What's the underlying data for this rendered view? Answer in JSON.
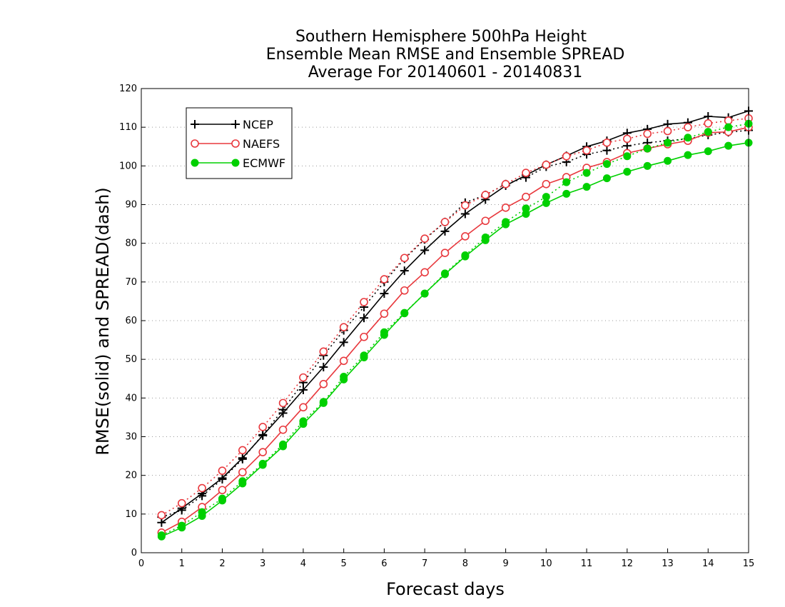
{
  "chart_data": {
    "type": "line",
    "title_lines": [
      "Southern Hemisphere 500hPa Height",
      "Ensemble Mean RMSE and Ensemble SPREAD",
      "Average For 20140601 - 20140831"
    ],
    "xlabel": "Forecast days",
    "ylabel": "RMSE(solid) and SPREAD(dash)",
    "xlim": [
      0,
      15
    ],
    "ylim": [
      0,
      120
    ],
    "xticks": [
      0,
      1,
      2,
      3,
      4,
      5,
      6,
      7,
      8,
      9,
      10,
      11,
      12,
      13,
      14,
      15
    ],
    "yticks": [
      0,
      10,
      20,
      30,
      40,
      50,
      60,
      70,
      80,
      90,
      100,
      110,
      120
    ],
    "grid": "horizontal-dotted",
    "legend_position": "top-left",
    "x": [
      0.5,
      1,
      1.5,
      2,
      2.5,
      3,
      3.5,
      4,
      4.5,
      5,
      5.5,
      6,
      6.5,
      7,
      7.5,
      8,
      8.5,
      9,
      9.5,
      10,
      10.5,
      11,
      11.5,
      12,
      12.5,
      13,
      13.5,
      14,
      14.5,
      15
    ],
    "series": [
      {
        "name": "NCEP",
        "color": "#000000",
        "marker": "plus",
        "rmse": [
          7.8,
          11.5,
          15.3,
          19.3,
          24.5,
          30.3,
          36.1,
          42.1,
          48.0,
          54.4,
          60.7,
          67.0,
          72.9,
          78.2,
          83.1,
          87.6,
          91.3,
          94.9,
          97.6,
          100.3,
          102.6,
          105.0,
          106.5,
          108.5,
          109.5,
          110.8,
          111.2,
          112.8,
          112.5,
          114.2
        ],
        "spread": [
          9.2,
          11.0,
          14.7,
          19.0,
          24.2,
          30.5,
          37.0,
          44.0,
          51.0,
          57.5,
          63.5,
          70.0,
          76.0,
          81.0,
          85.5,
          90.5,
          92.5,
          95.3,
          97.0,
          99.8,
          101.0,
          103.0,
          104.0,
          105.2,
          106.0,
          106.5,
          107.0,
          108.0,
          108.7,
          109.2
        ]
      },
      {
        "name": "NAEFS",
        "color": "#e8383d",
        "marker": "open-circle",
        "rmse": [
          5.2,
          8.0,
          11.8,
          16.2,
          20.8,
          26.0,
          31.8,
          37.6,
          43.6,
          49.6,
          55.8,
          61.8,
          67.8,
          72.5,
          77.5,
          81.8,
          85.8,
          89.2,
          92.0,
          95.3,
          97.1,
          99.5,
          101.0,
          103.3,
          104.5,
          105.6,
          106.5,
          108.6,
          108.8,
          110.0
        ],
        "spread": [
          9.7,
          12.8,
          16.7,
          21.2,
          26.5,
          32.5,
          38.7,
          45.3,
          52.0,
          58.3,
          64.8,
          70.7,
          76.2,
          81.2,
          85.5,
          89.8,
          92.5,
          95.3,
          98.2,
          100.3,
          102.5,
          104.0,
          106.0,
          107.0,
          108.3,
          109.0,
          110.0,
          111.0,
          111.7,
          112.3
        ]
      },
      {
        "name": "ECMWF",
        "color": "#00d000",
        "marker": "filled-circle",
        "rmse": [
          4.2,
          6.5,
          9.5,
          13.5,
          17.9,
          22.7,
          27.5,
          33.3,
          38.7,
          44.8,
          50.5,
          56.3,
          61.9,
          67.0,
          72.0,
          76.6,
          80.8,
          84.9,
          87.6,
          90.4,
          92.8,
          94.6,
          96.8,
          98.5,
          100.0,
          101.3,
          102.8,
          103.8,
          105.2,
          106.0
        ],
        "spread": [
          4.5,
          7.0,
          10.5,
          14.0,
          18.5,
          23.0,
          28.0,
          34.0,
          39.0,
          45.5,
          51.0,
          57.0,
          62.0,
          67.0,
          72.2,
          76.9,
          81.5,
          85.5,
          89.0,
          92.0,
          95.8,
          98.2,
          100.5,
          102.5,
          104.5,
          106.0,
          107.3,
          108.8,
          110.0,
          110.9
        ]
      }
    ]
  }
}
